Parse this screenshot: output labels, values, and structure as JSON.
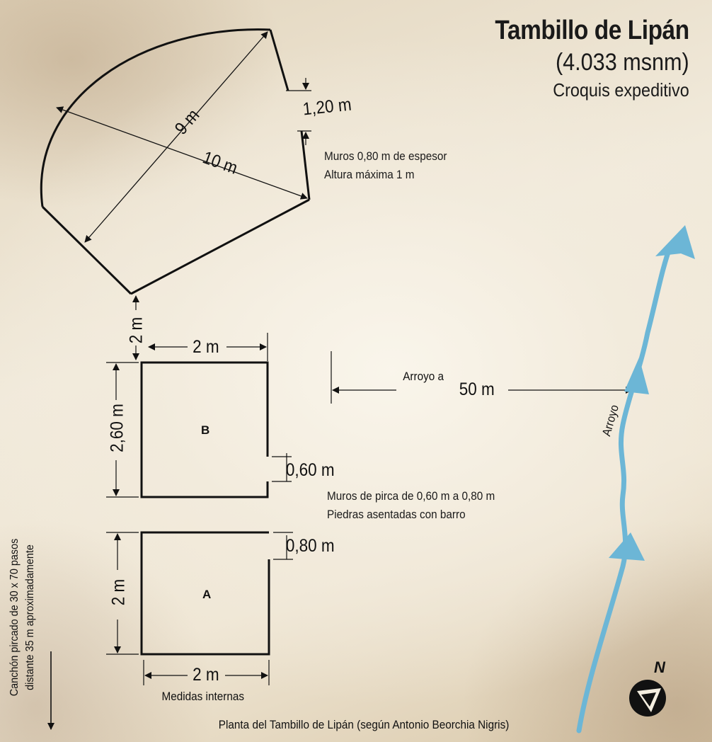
{
  "header": {
    "title": "Tambillo de Lipán",
    "altitude": "(4.033 msnm)",
    "subtitle": "Croquis expeditivo"
  },
  "notes": {
    "walls_line1": "Muros 0,80 m de espesor",
    "walls_line2": "Altura máxima 1 m",
    "pirca_line1": "Muros de pirca de 0,60 m a 0,80 m",
    "pirca_line2": "Piedras asentadas con barro",
    "internal": "Medidas internas",
    "corral_line1": "Canchón pircado de 30 x 70 pasos",
    "corral_line2": "distante 35 m aproximadamente",
    "footer": "Planta del Tambillo de Lipán (según Antonio Beorchia Nigris)"
  },
  "dimensions": {
    "diag_9": "9 m",
    "diag_10": "10 m",
    "opening_top": "1,20 m",
    "gap_2": "2 m",
    "b_width": "2 m",
    "b_height": "2,60 m",
    "b_opening": "0,60 m",
    "a_opening": "0,80 m",
    "a_height": "2 m",
    "a_width": "2 m",
    "creek_distance_label": "Arroyo a",
    "creek_distance": "50 m"
  },
  "rooms": {
    "b": "B",
    "a": "A"
  },
  "creek": {
    "label": "Arroyo",
    "color": "#6cb6d6"
  },
  "compass": {
    "label": "N",
    "icon": "north-arrow-icon"
  }
}
